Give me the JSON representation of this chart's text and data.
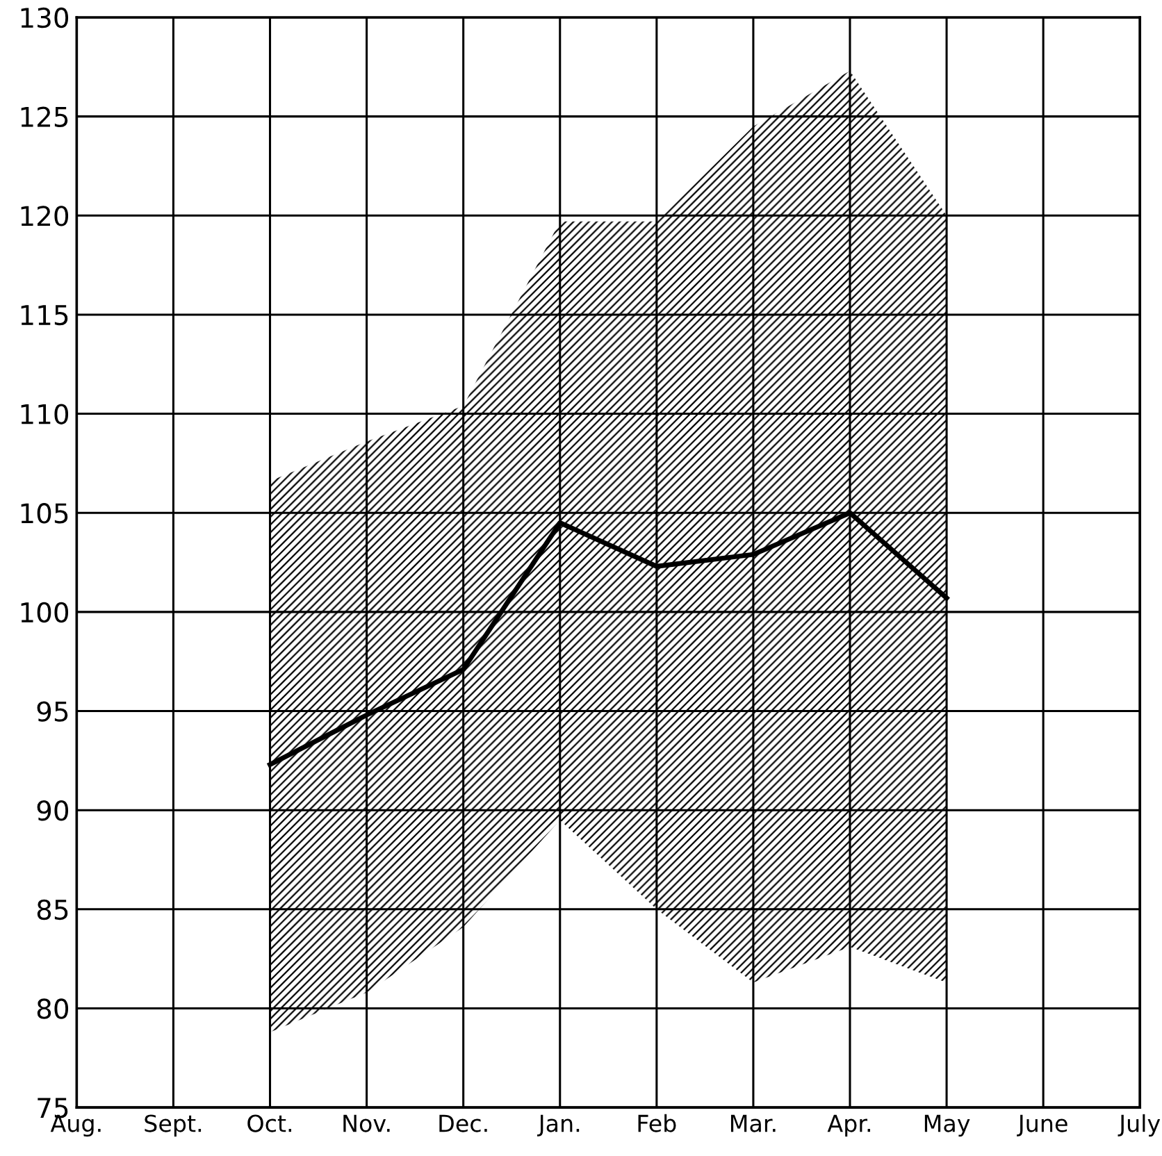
{
  "chart_data": {
    "type": "line",
    "categories": [
      "Aug.",
      "Sept.",
      "Oct.",
      "Nov.",
      "Dec.",
      "Jan.",
      "Feb",
      "Mar.",
      "Apr.",
      "May",
      "June",
      "July"
    ],
    "series": [
      {
        "color": "#000000",
        "values": [
          null,
          null,
          92.3,
          94.8,
          97.1,
          104.5,
          102.3,
          102.9,
          105.0,
          100.7,
          null,
          null
        ],
        "lower": [
          null,
          null,
          78.8,
          80.8,
          84.1,
          89.5,
          85.0,
          81.3,
          83.1,
          81.3,
          null,
          null
        ],
        "upper": [
          null,
          null,
          106.6,
          108.6,
          110.4,
          119.7,
          119.7,
          124.5,
          127.3,
          120.0,
          null,
          null
        ]
      }
    ],
    "ylim": [
      75,
      130
    ],
    "yticks": [
      75,
      80,
      85,
      90,
      95,
      100,
      105,
      110,
      115,
      120,
      125,
      130
    ],
    "grid": true,
    "marker": "none",
    "line_style": "solid",
    "legend": false
  }
}
